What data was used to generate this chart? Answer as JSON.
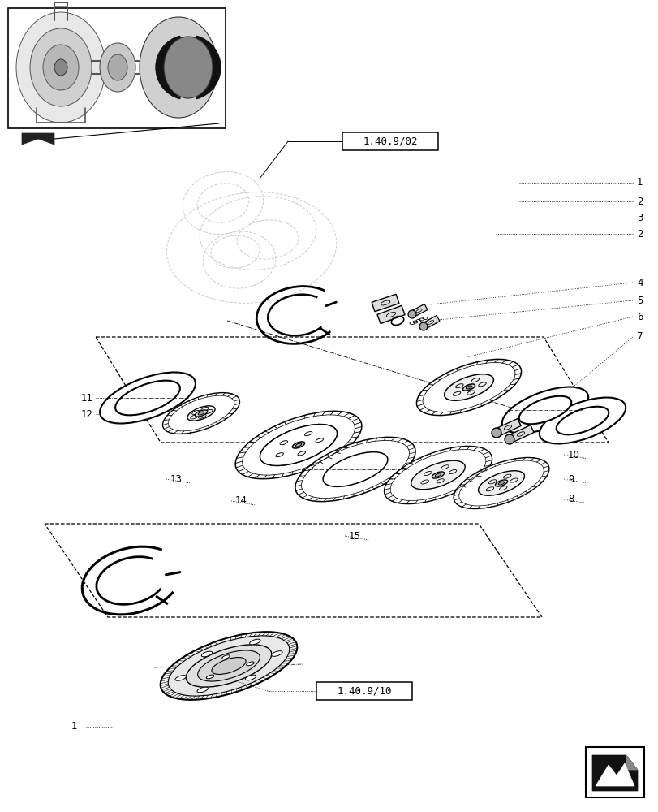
{
  "bg_color": "#ffffff",
  "lc": "#000000",
  "lg": "#aaaaaa",
  "llg": "#cccccc",
  "ref_label_1": "1.40.9/02",
  "ref_label_2": "1.40.9/10",
  "label_fs": 8.5
}
